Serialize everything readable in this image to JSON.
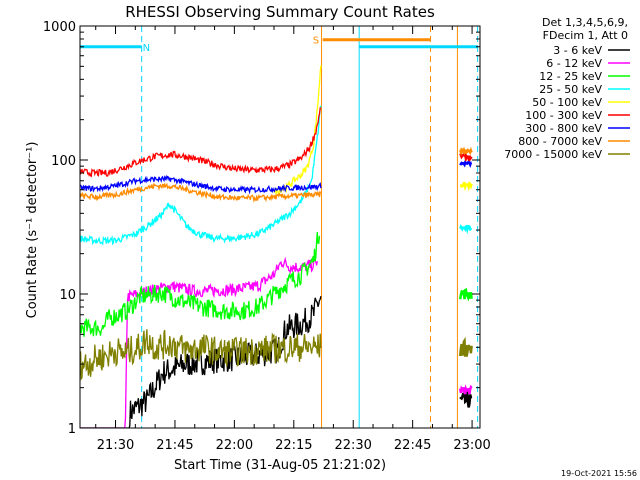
{
  "chart_data": {
    "type": "line",
    "title": "RHESSI Observing Summary Count Rates",
    "xlabel": "Start Time (31-Aug-05 21:21:02)",
    "ylabel": "Count Rate (s⁻¹ detector⁻¹)",
    "yscale": "log",
    "ylim": [
      1,
      1000
    ],
    "xlim_minutes": [
      21.033,
      122.0
    ],
    "yticks": [
      1,
      10,
      100,
      1000
    ],
    "ytick_labels": [
      "1",
      "10",
      "100",
      "1000"
    ],
    "xticks_minutes": [
      30,
      45,
      60,
      75,
      90,
      105,
      120
    ],
    "xtick_labels": [
      "21:30",
      "21:45",
      "22:00",
      "22:15",
      "22:30",
      "22:45",
      "23:00"
    ],
    "legend_header": [
      "Det 1,3,4,5,6,9,",
      "FDecim 1, Att 0"
    ],
    "legend_position": "right",
    "timestamp": "19-Oct-2021 15:56",
    "segments": [
      [
        21.0,
        82.0
      ],
      [
        117.0,
        120.0
      ]
    ],
    "flag_bars": [
      {
        "label": "N",
        "color": "#00d8ff",
        "ranges": [
          [
            21.0,
            36.6
          ],
          [
            91.5,
            121.5
          ]
        ],
        "level": 700,
        "marker_at": 37.8
      },
      {
        "label": "S",
        "color": "#ff8c00",
        "ranges": [
          [
            82.3,
            109.5
          ]
        ],
        "level": 790,
        "marker_at": 80.6
      }
    ],
    "vertical_lines": [
      {
        "x": 21.0,
        "color": "#00d8ff",
        "style": "solid"
      },
      {
        "x": 36.6,
        "color": "#00d8ff",
        "style": "dashed"
      },
      {
        "x": 91.5,
        "color": "#00d8ff",
        "style": "solid"
      },
      {
        "x": 121.4,
        "color": "#00d8ff",
        "style": "dashed"
      },
      {
        "x": 82.0,
        "color": "#ff8c00",
        "style": "solid"
      },
      {
        "x": 109.5,
        "color": "#ff8c00",
        "style": "dashed"
      },
      {
        "x": 116.3,
        "color": "#ff8c00",
        "style": "solid"
      }
    ],
    "series": [
      {
        "name": "3 - 6 keV",
        "color": "#000000",
        "points": [
          [
            21,
            1
          ],
          [
            33.5,
            1
          ],
          [
            33.5,
            1.3
          ],
          [
            38,
            1.6
          ],
          [
            42,
            2.6
          ],
          [
            48,
            3.0
          ],
          [
            55,
            3.2
          ],
          [
            60,
            3.3
          ],
          [
            66,
            3.5
          ],
          [
            71,
            3.8
          ],
          [
            73,
            5.5
          ],
          [
            77,
            6.0
          ],
          [
            80,
            7.0
          ],
          [
            81,
            8.5
          ],
          [
            82,
            9.5
          ]
        ],
        "points_b": [
          [
            117,
            1.6
          ],
          [
            120,
            1.6
          ]
        ]
      },
      {
        "name": "6 - 12 keV",
        "color": "#ff00ff",
        "points": [
          [
            21,
            1
          ],
          [
            32.5,
            1
          ],
          [
            33,
            9.5
          ],
          [
            38,
            10.5
          ],
          [
            44,
            11.5
          ],
          [
            50,
            10.5
          ],
          [
            55,
            10.6
          ],
          [
            60,
            10.8
          ],
          [
            66,
            11.5
          ],
          [
            70,
            14.0
          ],
          [
            72,
            17.5
          ],
          [
            74,
            16.0
          ],
          [
            77,
            15.8
          ],
          [
            80,
            16.5
          ],
          [
            81,
            17.5
          ]
        ],
        "points_b": [
          [
            117,
            1.9
          ],
          [
            120,
            1.9
          ]
        ]
      },
      {
        "name": "12 - 25 keV",
        "color": "#00ff00",
        "points": [
          [
            21,
            5.6
          ],
          [
            27,
            5.6
          ],
          [
            28,
            6.5
          ],
          [
            33,
            7.5
          ],
          [
            36,
            9.5
          ],
          [
            40,
            10.0
          ],
          [
            42,
            10.2
          ],
          [
            46,
            9.0
          ],
          [
            52,
            8.0
          ],
          [
            57,
            7.5
          ],
          [
            62,
            7.5
          ],
          [
            66,
            8.0
          ],
          [
            70,
            10.0
          ],
          [
            74,
            12.5
          ],
          [
            77,
            14.0
          ],
          [
            80,
            18.0
          ],
          [
            81.5,
            30.0
          ]
        ],
        "points_b": [
          [
            117,
            10
          ],
          [
            120,
            10
          ]
        ]
      },
      {
        "name": "25 - 50 keV",
        "color": "#00ffff",
        "points": [
          [
            21,
            26
          ],
          [
            25,
            25
          ],
          [
            30,
            25
          ],
          [
            35,
            28
          ],
          [
            38,
            32
          ],
          [
            42,
            40
          ],
          [
            43.5,
            47
          ],
          [
            45,
            42
          ],
          [
            48,
            32
          ],
          [
            51,
            28
          ],
          [
            55,
            26
          ],
          [
            60,
            26
          ],
          [
            66,
            28
          ],
          [
            70,
            33
          ],
          [
            74,
            40
          ],
          [
            77,
            50
          ],
          [
            79.5,
            70
          ],
          [
            81,
            150
          ],
          [
            82,
            290
          ]
        ],
        "points_b": [
          [
            117,
            31
          ],
          [
            120,
            31
          ]
        ]
      },
      {
        "name": "50 - 100 keV",
        "color": "#ffff00",
        "points": [
          [
            70,
            58
          ],
          [
            73,
            62
          ],
          [
            75,
            70
          ],
          [
            77,
            78
          ],
          [
            78.5,
            90
          ],
          [
            80,
            130
          ],
          [
            81,
            250
          ],
          [
            82,
            580
          ]
        ],
        "points_b": [
          [
            117,
            65
          ],
          [
            120,
            65
          ]
        ]
      },
      {
        "name": "100 - 300 keV",
        "color": "#ff0000",
        "points": [
          [
            21,
            82
          ],
          [
            24,
            80
          ],
          [
            28,
            80
          ],
          [
            32,
            88
          ],
          [
            36,
            98
          ],
          [
            40,
            106
          ],
          [
            44,
            110
          ],
          [
            48,
            106
          ],
          [
            52,
            98
          ],
          [
            56,
            91
          ],
          [
            60,
            86
          ],
          [
            64,
            84
          ],
          [
            70,
            85
          ],
          [
            74,
            92
          ],
          [
            77,
            104
          ],
          [
            79,
            124
          ],
          [
            80.5,
            160
          ],
          [
            81.5,
            220
          ],
          [
            82,
            270
          ]
        ],
        "points_b": [
          [
            117,
            108
          ],
          [
            120,
            104
          ]
        ]
      },
      {
        "name": "300 - 800 keV",
        "color": "#0000ff",
        "points": [
          [
            21,
            62
          ],
          [
            25,
            61
          ],
          [
            30,
            64
          ],
          [
            35,
            70
          ],
          [
            40,
            72
          ],
          [
            44,
            72
          ],
          [
            48,
            68
          ],
          [
            52,
            64
          ],
          [
            56,
            61
          ],
          [
            60,
            60
          ],
          [
            66,
            60
          ],
          [
            70,
            61
          ],
          [
            75,
            62
          ],
          [
            80,
            63
          ],
          [
            82,
            64
          ]
        ],
        "points_b": [
          [
            117,
            94
          ],
          [
            120,
            94
          ]
        ]
      },
      {
        "name": "800 - 7000 keV",
        "color": "#ff8c00",
        "points": [
          [
            21,
            54
          ],
          [
            25,
            53
          ],
          [
            30,
            55
          ],
          [
            35,
            60
          ],
          [
            40,
            64
          ],
          [
            44,
            64
          ],
          [
            48,
            60
          ],
          [
            52,
            56
          ],
          [
            56,
            53
          ],
          [
            60,
            52
          ],
          [
            66,
            52
          ],
          [
            70,
            53
          ],
          [
            75,
            54
          ],
          [
            80,
            55
          ],
          [
            82,
            55
          ]
        ],
        "points_b": [
          [
            117,
            118
          ],
          [
            120,
            115
          ]
        ]
      },
      {
        "name": "7000 - 15000 keV",
        "color": "#808000",
        "points": [
          [
            21,
            3.0
          ],
          [
            23,
            3.0
          ],
          [
            25,
            3.3
          ],
          [
            28,
            3.5
          ],
          [
            30,
            3.8
          ],
          [
            32,
            3.6
          ],
          [
            34,
            3.8
          ],
          [
            36,
            4.0
          ],
          [
            38,
            4.6
          ],
          [
            40,
            4.0
          ],
          [
            44,
            4.3
          ],
          [
            48,
            3.8
          ],
          [
            52,
            4.0
          ],
          [
            56,
            3.7
          ],
          [
            60,
            3.7
          ],
          [
            66,
            3.8
          ],
          [
            70,
            3.9
          ],
          [
            76,
            4.0
          ],
          [
            82,
            4.0
          ]
        ],
        "points_b": [
          [
            117,
            3.9
          ],
          [
            120,
            3.9
          ]
        ]
      }
    ]
  }
}
